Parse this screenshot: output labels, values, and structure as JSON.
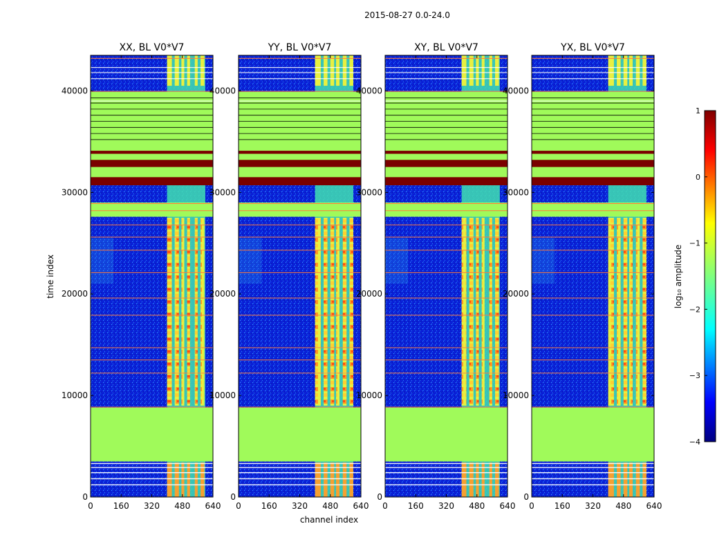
{
  "figure": {
    "suptitle": "2015-08-27 0.0-24.0",
    "xlabel": "channel index",
    "ylabel": "time index",
    "colorbar_label": "log₁₀ amplitude"
  },
  "colors": {
    "jet_background_low": "#0a1fd8",
    "flag_fill": "#a0fa5a",
    "flag_line": "#000000",
    "hot_band": "#7a0000",
    "rfi_line": "#ff7a3d"
  },
  "chart_data": [
    {
      "type": "heatmap",
      "title": "XX, BL V0*V7",
      "xlim": [
        0,
        640
      ],
      "ylim": [
        0,
        43500
      ],
      "xticks": [
        "0",
        "160",
        "320",
        "480",
        "640"
      ],
      "yticks": [
        "0",
        "10000",
        "20000",
        "30000",
        "40000"
      ],
      "rfi_channels": [
        [
          400,
          425
        ],
        [
          440,
          462
        ],
        [
          475,
          490
        ],
        [
          505,
          520
        ],
        [
          545,
          560
        ],
        [
          575,
          595
        ]
      ],
      "bright_channel_range": [
        400,
        600
      ]
    },
    {
      "type": "heatmap",
      "title": "YY, BL V0*V7",
      "xlim": [
        0,
        640
      ],
      "ylim": [
        0,
        43500
      ],
      "xticks": [
        "0",
        "160",
        "320",
        "480",
        "640"
      ],
      "yticks": [
        "0",
        "10000",
        "20000",
        "30000",
        "40000"
      ],
      "rfi_channels": [
        [
          400,
          430
        ],
        [
          445,
          465
        ],
        [
          480,
          500
        ],
        [
          510,
          528
        ],
        [
          545,
          565
        ],
        [
          580,
          600
        ]
      ],
      "bright_channel_range": [
        400,
        600
      ]
    },
    {
      "type": "heatmap",
      "title": "XY, BL V0*V7",
      "xlim": [
        0,
        640
      ],
      "ylim": [
        0,
        43500
      ],
      "xticks": [
        "0",
        "160",
        "320",
        "480",
        "640"
      ],
      "yticks": [
        "0",
        "10000",
        "20000",
        "30000",
        "40000"
      ],
      "rfi_channels": [
        [
          400,
          425
        ],
        [
          440,
          462
        ],
        [
          475,
          490
        ],
        [
          505,
          520
        ],
        [
          545,
          560
        ],
        [
          575,
          595
        ]
      ],
      "bright_channel_range": [
        400,
        600
      ]
    },
    {
      "type": "heatmap",
      "title": "YX, BL V0*V7",
      "xlim": [
        0,
        640
      ],
      "ylim": [
        0,
        43500
      ],
      "xticks": [
        "0",
        "160",
        "320",
        "480",
        "640"
      ],
      "yticks": [
        "0",
        "10000",
        "20000",
        "30000",
        "40000"
      ],
      "rfi_channels": [
        [
          400,
          430
        ],
        [
          445,
          465
        ],
        [
          480,
          500
        ],
        [
          510,
          528
        ],
        [
          545,
          565
        ],
        [
          580,
          600
        ]
      ],
      "bright_channel_range": [
        400,
        600
      ]
    }
  ],
  "bands": {
    "flagged": [
      [
        3500,
        8800
      ],
      [
        30700,
        39900
      ]
    ],
    "hot": [
      [
        30700,
        31500
      ],
      [
        32500,
        33200
      ],
      [
        33800,
        34100
      ]
    ],
    "mid_flag": [
      [
        27600,
        29000
      ]
    ],
    "flag_lines": [
      35200,
      35800,
      36400,
      37000,
      37600,
      38200,
      38800,
      39300
    ],
    "rfi_lines": [
      8850,
      12200,
      13500,
      14700,
      17900,
      19600,
      22100,
      24300,
      25600,
      26800,
      28200,
      28900,
      39950,
      43200
    ],
    "low_lines": [
      1200,
      1800,
      2400,
      2900,
      3300
    ]
  },
  "colorbar": {
    "range": [
      -4,
      1
    ],
    "ticks": [
      "1",
      "0",
      "−1",
      "−2",
      "−3",
      "−4"
    ],
    "tick_values": [
      1,
      0,
      -1,
      -2,
      -3,
      -4
    ]
  }
}
